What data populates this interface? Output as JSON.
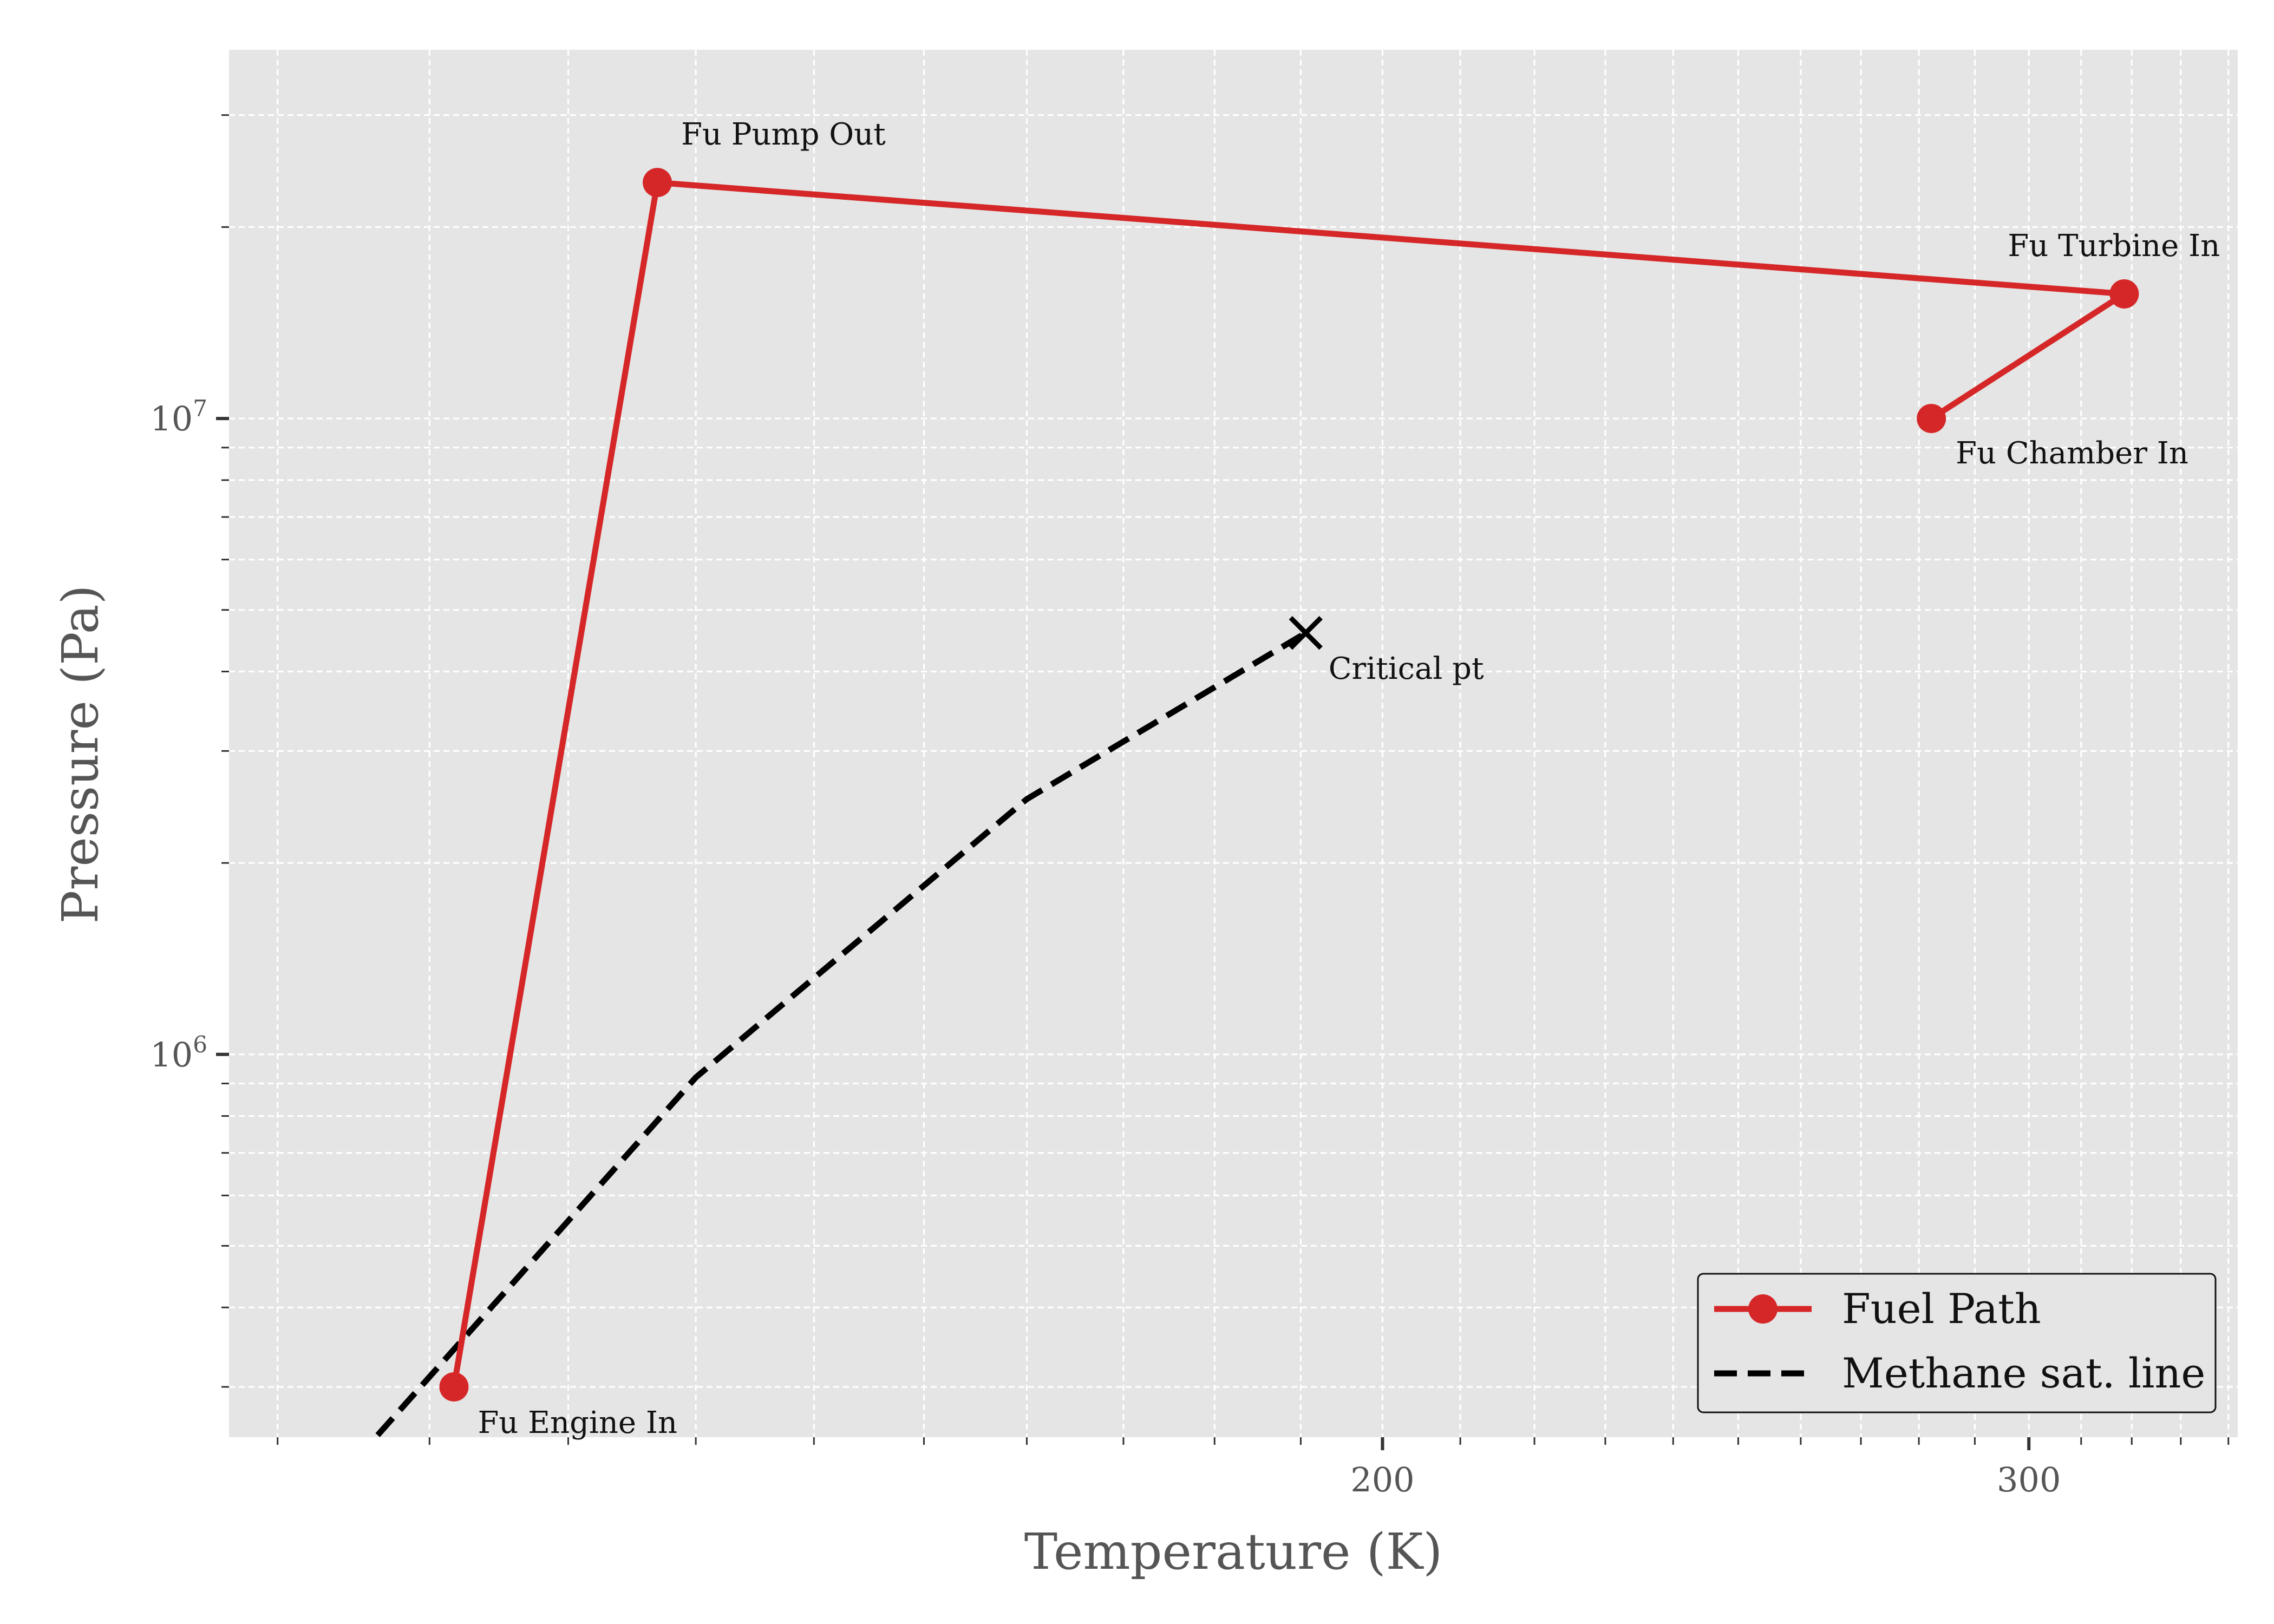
{
  "chart_data": {
    "type": "line",
    "title": "",
    "xlabel": "Temperature (K)",
    "ylabel": "Pressure (Pa)",
    "xscale": "log",
    "yscale": "log",
    "xlim": [
      97,
      342
    ],
    "ylim": [
      250000,
      38000000
    ],
    "x_ticks": [
      {
        "value": 200,
        "label": "200"
      },
      {
        "value": 300,
        "label": "300"
      }
    ],
    "y_ticks": [
      {
        "value": 1000000,
        "base": "10",
        "exp": "6"
      },
      {
        "value": 10000000,
        "base": "10",
        "exp": "7"
      }
    ],
    "grid": true,
    "legend_position": "bottom-right",
    "series": [
      {
        "name": "Fuel Path",
        "color": "#d62728",
        "style": "solid",
        "marker": "circle",
        "points": [
          {
            "x": 111.7,
            "y": 300000,
            "label": "Fu Engine In"
          },
          {
            "x": 126.9,
            "y": 23500000,
            "label": "Fu Pump Out"
          },
          {
            "x": 318.5,
            "y": 15700000,
            "label": "Fu Turbine In"
          },
          {
            "x": 282.2,
            "y": 10000000,
            "label": "Fu Chamber In"
          }
        ]
      },
      {
        "name": "Methane sat. line",
        "color": "#000000",
        "style": "dashed",
        "marker": "none",
        "points": [
          {
            "x": 105,
            "y": 230000
          },
          {
            "x": 130,
            "y": 920000
          },
          {
            "x": 160,
            "y": 2520000
          },
          {
            "x": 190.6,
            "y": 4600000
          }
        ]
      }
    ],
    "critical_point": {
      "x": 190.6,
      "y": 4600000,
      "label": "Critical pt",
      "marker": "x",
      "color": "#000000"
    }
  }
}
